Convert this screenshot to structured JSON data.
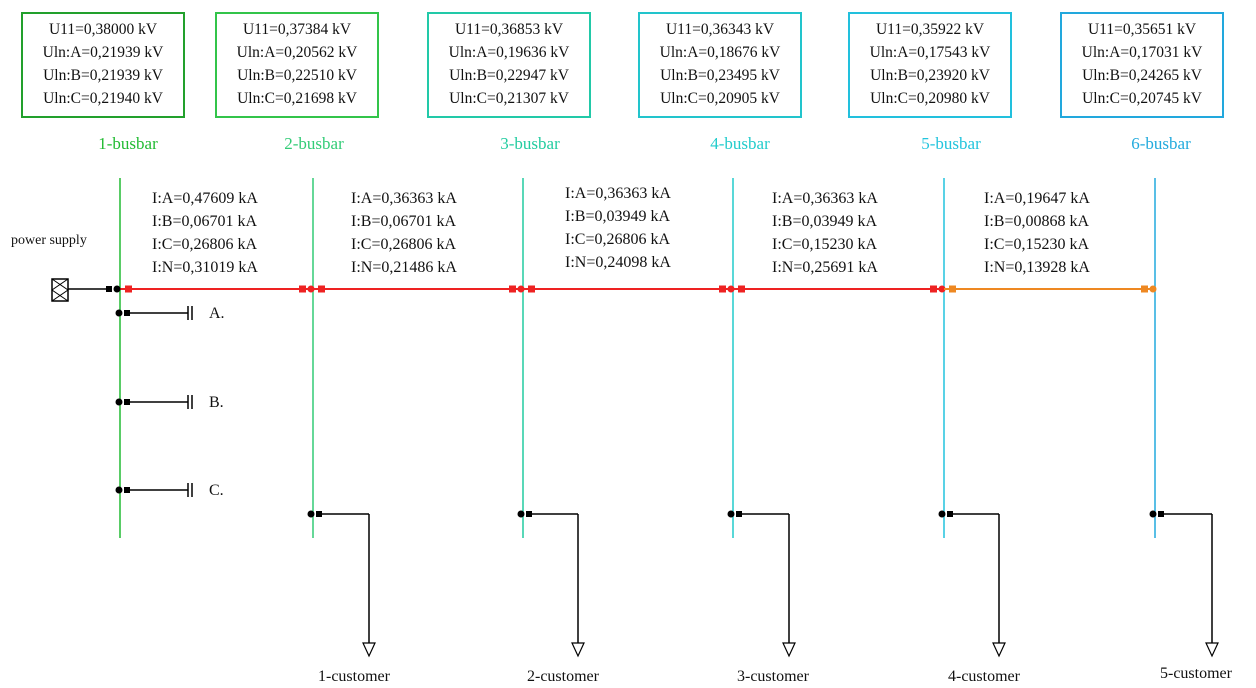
{
  "busbars": [
    {
      "name": "1-busbar",
      "color": "#22bb33",
      "box_color": "#22a02c",
      "U11": "U11=0,38000 kV",
      "UA": "Uln:A=0,21939 kV",
      "UB": "Uln:B=0,21939 kV",
      "UC": "Uln:C=0,21940 kV"
    },
    {
      "name": "2-busbar",
      "color": "#33cc77",
      "box_color": "#33c44a",
      "U11": "U11=0,37384 kV",
      "UA": "Uln:A=0,20562 kV",
      "UB": "Uln:B=0,22510 kV",
      "UC": "Uln:C=0,21698 kV"
    },
    {
      "name": "3-busbar",
      "color": "#22cca0",
      "box_color": "#22c9a8",
      "U11": "U11=0,36853 kV",
      "UA": "Uln:A=0,19636 kV",
      "UB": "Uln:B=0,22947 kV",
      "UC": "Uln:C=0,21307 kV"
    },
    {
      "name": "4-busbar",
      "color": "#22cccc",
      "box_color": "#22c4cc",
      "U11": "U11=0,36343 kV",
      "UA": "Uln:A=0,18676 kV",
      "UB": "Uln:B=0,23495 kV",
      "UC": "Uln:C=0,20905 kV"
    },
    {
      "name": "5-busbar",
      "color": "#22c4dd",
      "box_color": "#22c0dd",
      "U11": "U11=0,35922 kV",
      "UA": "Uln:A=0,17543 kV",
      "UB": "Uln:B=0,23920 kV",
      "UC": "Uln:C=0,20980 kV"
    },
    {
      "name": "6-busbar",
      "color": "#22aadd",
      "box_color": "#22a8dd",
      "U11": "U11=0,35651 kV",
      "UA": "Uln:A=0,17031 kV",
      "UB": "Uln:B=0,24265 kV",
      "UC": "Uln:C=0,20745 kV"
    }
  ],
  "currents": [
    {
      "IA": "I:A=0,47609 kA",
      "IB": "I:B=0,06701 kA",
      "IC": "I:C=0,26806 kA",
      "IN": "I:N=0,31019 kA",
      "line_color": "#ee2222"
    },
    {
      "IA": "I:A=0,36363 kA",
      "IB": "I:B=0,06701 kA",
      "IC": "I:C=0,26806 kA",
      "IN": "I:N=0,21486 kA",
      "line_color": "#ee2222"
    },
    {
      "IA": "I:A=0,36363 kA",
      "IB": "I:B=0,03949 kA",
      "IC": "I:C=0,26806 kA",
      "IN": "I:N=0,24098 kA",
      "line_color": "#ee2222"
    },
    {
      "IA": "I:A=0,36363 kA",
      "IB": "I:B=0,03949 kA",
      "IC": "I:C=0,15230 kA",
      "IN": "I:N=0,25691 kA",
      "line_color": "#ee2222"
    },
    {
      "IA": "I:A=0,19647 kA",
      "IB": "I:B=0,00868 kA",
      "IC": "I:C=0,15230 kA",
      "IN": "I:N=0,13928 kA",
      "line_color": "#ee8822"
    }
  ],
  "power_supply_label": "power supply",
  "phase_labels": {
    "A": "A.",
    "B": "B.",
    "C": "C."
  },
  "customers": [
    "1-customer",
    "2-customer",
    "3-customer",
    "4-customer",
    "5-customer"
  ],
  "colors": {
    "feeder_red": "#ee2222",
    "feeder_orange": "#ee8822",
    "wire": "#000000"
  }
}
